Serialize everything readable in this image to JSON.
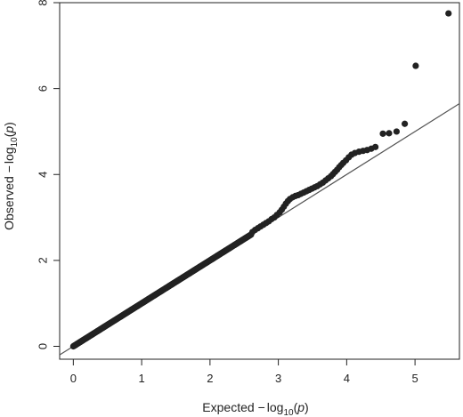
{
  "chart_data": {
    "type": "scatter",
    "title": "",
    "xlabel": {
      "prefix": "Expected ",
      "minus": "−",
      "log": "log",
      "base": "10",
      "arg_open": "(",
      "arg": "p",
      "arg_close": ")"
    },
    "ylabel": {
      "prefix": "Observed ",
      "minus": "−",
      "log": "log",
      "base": "10",
      "arg_open": "(",
      "arg": "p",
      "arg_close": ")"
    },
    "xlim": [
      -0.2,
      5.65
    ],
    "ylim": [
      -0.3,
      8.0
    ],
    "xticks": [
      0,
      1,
      2,
      3,
      4,
      5
    ],
    "yticks": [
      0,
      2,
      4,
      6,
      8
    ],
    "grid": false,
    "reference_line": {
      "slope": 1,
      "intercept": 0,
      "color": "#555555"
    },
    "point_color": "#222222",
    "dense_segments": [
      {
        "x_start": 0.0,
        "x_end": 2.6,
        "note_y_equals_x": true,
        "n": 260
      }
    ],
    "points": [
      [
        2.62,
        2.66
      ],
      [
        2.66,
        2.71
      ],
      [
        2.7,
        2.75
      ],
      [
        2.74,
        2.79
      ],
      [
        2.78,
        2.83
      ],
      [
        2.82,
        2.87
      ],
      [
        2.86,
        2.91
      ],
      [
        2.9,
        2.96
      ],
      [
        2.94,
        3.0
      ],
      [
        2.98,
        3.06
      ],
      [
        3.02,
        3.12
      ],
      [
        3.05,
        3.18
      ],
      [
        3.08,
        3.25
      ],
      [
        3.11,
        3.32
      ],
      [
        3.14,
        3.38
      ],
      [
        3.17,
        3.43
      ],
      [
        3.21,
        3.47
      ],
      [
        3.25,
        3.5
      ],
      [
        3.29,
        3.52
      ],
      [
        3.33,
        3.55
      ],
      [
        3.37,
        3.58
      ],
      [
        3.41,
        3.61
      ],
      [
        3.45,
        3.64
      ],
      [
        3.49,
        3.67
      ],
      [
        3.53,
        3.7
      ],
      [
        3.57,
        3.73
      ],
      [
        3.61,
        3.77
      ],
      [
        3.65,
        3.81
      ],
      [
        3.69,
        3.86
      ],
      [
        3.73,
        3.91
      ],
      [
        3.77,
        3.96
      ],
      [
        3.8,
        4.01
      ],
      [
        3.83,
        4.06
      ],
      [
        3.86,
        4.11
      ],
      [
        3.89,
        4.17
      ],
      [
        3.92,
        4.22
      ],
      [
        3.95,
        4.27
      ],
      [
        3.99,
        4.33
      ],
      [
        4.03,
        4.4
      ],
      [
        4.07,
        4.46
      ],
      [
        4.12,
        4.5
      ],
      [
        4.18,
        4.53
      ],
      [
        4.24,
        4.55
      ],
      [
        4.3,
        4.57
      ],
      [
        4.36,
        4.6
      ],
      [
        4.42,
        4.64
      ],
      [
        4.53,
        4.95
      ],
      [
        4.62,
        4.96
      ],
      [
        4.73,
        5.0
      ],
      [
        4.85,
        5.18
      ],
      [
        5.01,
        6.53
      ],
      [
        5.49,
        7.75
      ]
    ]
  }
}
